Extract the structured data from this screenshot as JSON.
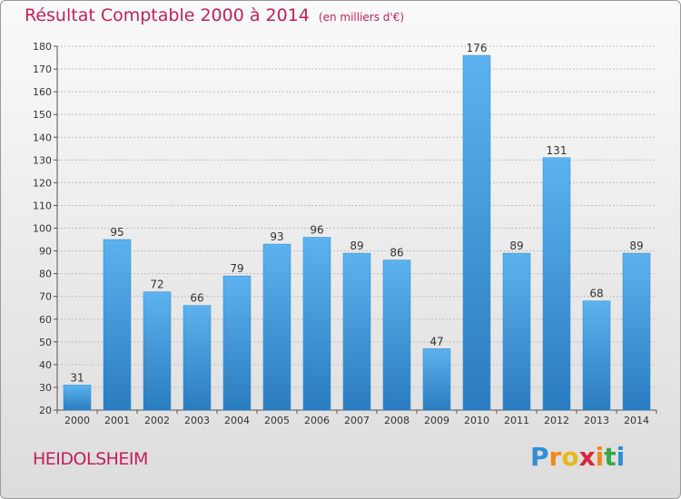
{
  "chart_data": {
    "type": "bar",
    "title": "Résultat Comptable 2000 à 2014",
    "subtitle": "(en milliers d'€)",
    "categories": [
      "2000",
      "2001",
      "2002",
      "2003",
      "2004",
      "2005",
      "2006",
      "2007",
      "2008",
      "2009",
      "2010",
      "2011",
      "2012",
      "2013",
      "2014"
    ],
    "values": [
      31,
      95,
      72,
      66,
      79,
      93,
      96,
      89,
      86,
      47,
      176,
      89,
      131,
      68,
      89
    ],
    "ylim": [
      20,
      180
    ],
    "yticks": [
      20,
      30,
      40,
      50,
      60,
      70,
      80,
      90,
      100,
      110,
      120,
      130,
      140,
      150,
      160,
      170,
      180
    ],
    "grid": true,
    "bar_color": "#3a8fd6",
    "label": "HEIDOLSHEIM"
  },
  "branding": {
    "logo_letters": [
      "P",
      "r",
      "o",
      "x",
      "i",
      "t",
      "i"
    ],
    "logo_colors": [
      "#2f8fd8",
      "#f08a1c",
      "#e8b81a",
      "#d6283a",
      "#f08a1c",
      "#36a94a",
      "#2f8fd8"
    ]
  }
}
